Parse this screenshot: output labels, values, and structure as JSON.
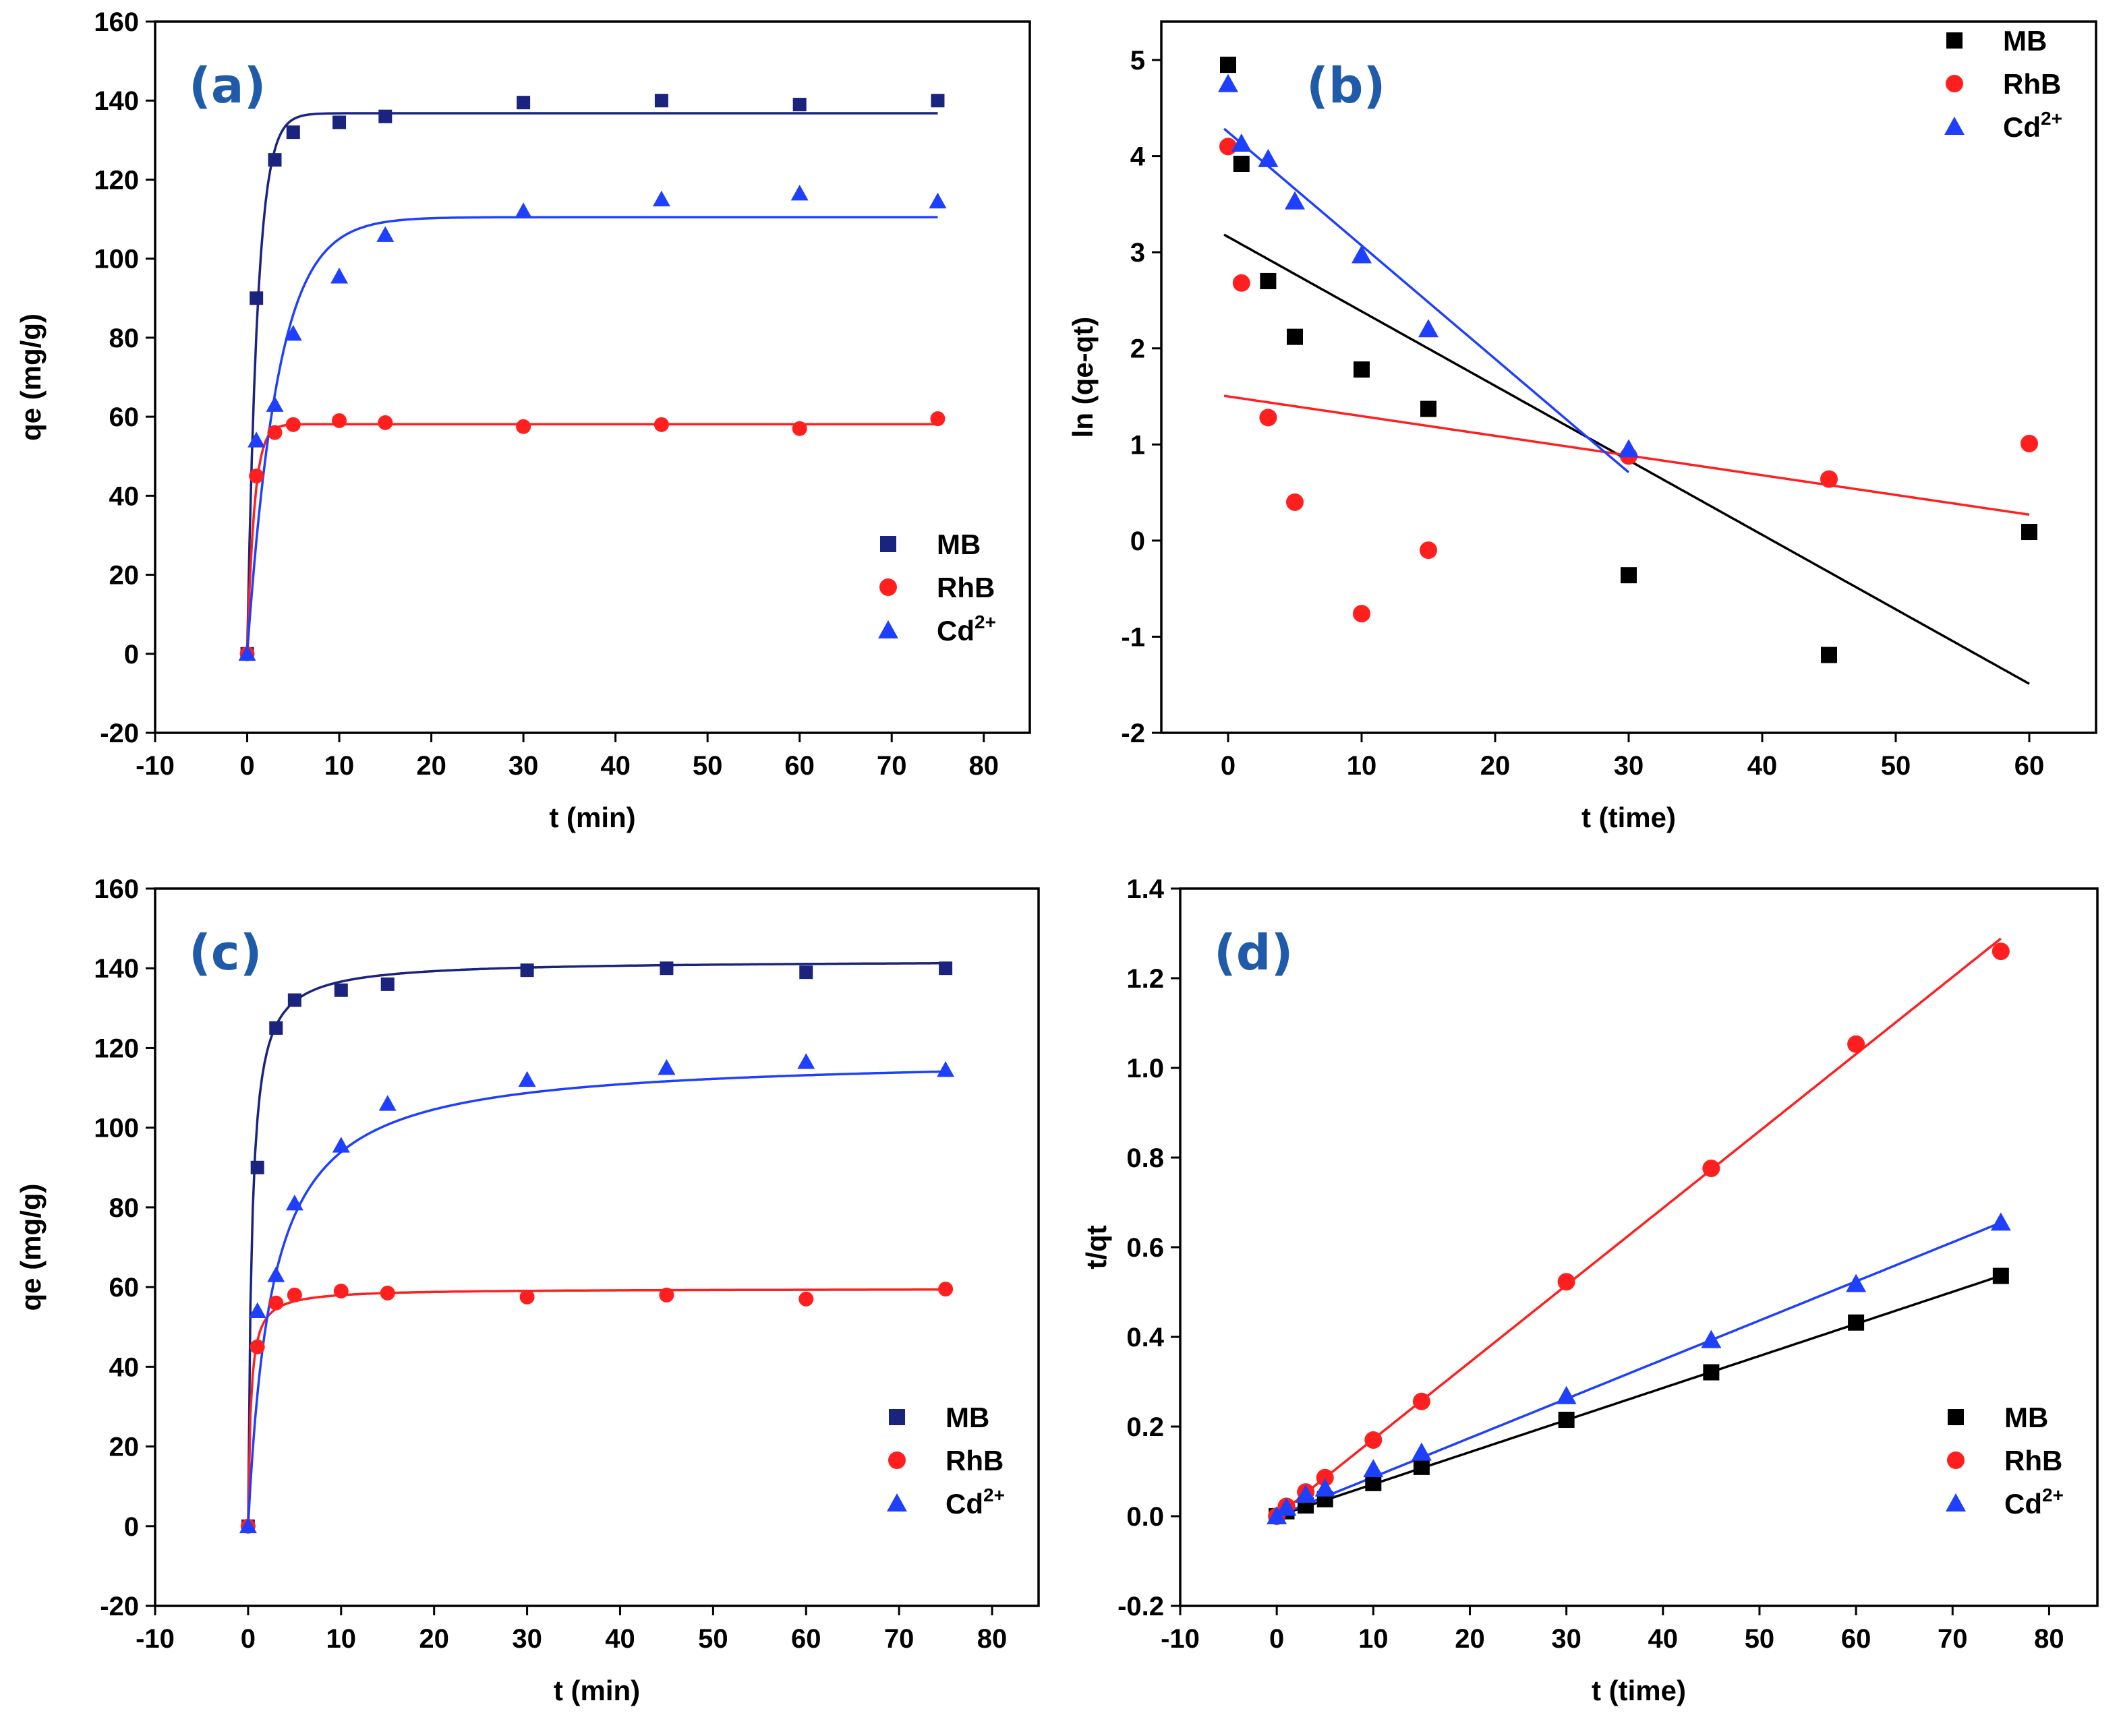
{
  "chart_data": [
    {
      "id": "a",
      "panel_label": "(a)",
      "type": "scatter",
      "xlabel": "t (min)",
      "ylabel": "qe (mg/g)",
      "xlim": [
        -10,
        85
      ],
      "ylim": [
        -20,
        160
      ],
      "xticks": [
        -10,
        0,
        10,
        20,
        30,
        40,
        50,
        60,
        70,
        80
      ],
      "yticks": [
        -20,
        0,
        20,
        40,
        60,
        80,
        100,
        120,
        140,
        160
      ],
      "legend_position": "bottom-right",
      "series": [
        {
          "name": "MB",
          "sup": "",
          "marker": "square-small",
          "color": "#1a237e",
          "x": [
            0,
            1,
            3,
            5,
            10,
            15,
            30,
            45,
            60,
            75
          ],
          "y": [
            0,
            90,
            125,
            132,
            134.5,
            136,
            139.5,
            140,
            139,
            140
          ],
          "fit": {
            "model": "pfo",
            "qe": 136.8,
            "k": 0.9,
            "xmax": 75
          }
        },
        {
          "name": "RhB",
          "sup": "",
          "marker": "circle-small",
          "color": "#ff1f1f",
          "x": [
            0,
            1,
            3,
            5,
            10,
            15,
            30,
            45,
            60,
            75
          ],
          "y": [
            0,
            45,
            56,
            58,
            59,
            58.5,
            57.5,
            58,
            57,
            59.5
          ],
          "fit": {
            "model": "pfo",
            "qe": 58.1,
            "k": 1.3,
            "xmax": 75
          }
        },
        {
          "name": "Cd",
          "sup": "2+",
          "marker": "triangle-small",
          "color": "#1f3fff",
          "x": [
            0,
            1,
            3,
            5,
            10,
            15,
            30,
            45,
            60,
            75
          ],
          "y": [
            0,
            54,
            63,
            81,
            95.5,
            106,
            112,
            115,
            116.5,
            114.5
          ],
          "fit": {
            "model": "pfo",
            "qe": 110.5,
            "k": 0.3,
            "xmax": 75
          }
        }
      ]
    },
    {
      "id": "b",
      "panel_label": "(b)",
      "type": "scatter",
      "xlabel": "t (time)",
      "ylabel": "ln (qe-qt)",
      "xlim": [
        -5,
        65
      ],
      "ylim": [
        -2,
        5.4
      ],
      "xticks": [
        0,
        10,
        20,
        30,
        40,
        50,
        60
      ],
      "yticks": [
        -2,
        -1,
        0,
        1,
        2,
        3,
        4,
        5
      ],
      "legend_position": "top-right",
      "series": [
        {
          "name": "MB",
          "sup": "",
          "marker": "square",
          "color": "#000000",
          "x": [
            0,
            1,
            3,
            5,
            10,
            15,
            30,
            45,
            60
          ],
          "y": [
            4.95,
            3.92,
            2.7,
            2.12,
            1.78,
            1.37,
            -0.36,
            -1.19,
            0.09
          ],
          "fit": {
            "model": "line",
            "slope": -0.0775,
            "intercept": 3.16,
            "xmin": -0.3,
            "xmax": 60
          }
        },
        {
          "name": "RhB",
          "sup": "",
          "marker": "circle",
          "color": "#ff1f1f",
          "x": [
            0,
            1,
            3,
            5,
            10,
            15,
            30,
            45,
            60
          ],
          "y": [
            4.1,
            2.68,
            1.28,
            0.4,
            -0.76,
            -0.1,
            0.88,
            0.64,
            1.01
          ],
          "fit": {
            "model": "line",
            "slope": -0.0205,
            "intercept": 1.5,
            "xmin": -0.3,
            "xmax": 60
          }
        },
        {
          "name": "Cd",
          "sup": "2+",
          "marker": "triangle",
          "color": "#1f3fff",
          "x": [
            0,
            1,
            3,
            5,
            10,
            15,
            30
          ],
          "y": [
            4.75,
            4.13,
            3.97,
            3.53,
            2.97,
            2.2,
            0.95
          ],
          "fit": {
            "model": "line",
            "slope": -0.118,
            "intercept": 4.25,
            "xmin": -0.3,
            "xmax": 30
          }
        }
      ]
    },
    {
      "id": "c",
      "panel_label": "(c)",
      "type": "scatter",
      "xlabel": "t (min)",
      "ylabel": "qe (mg/g)",
      "xlim": [
        -10,
        85
      ],
      "ylim": [
        -20,
        160
      ],
      "xticks": [
        -10,
        0,
        10,
        20,
        30,
        40,
        50,
        60,
        70,
        80
      ],
      "yticks": [
        -20,
        0,
        20,
        40,
        60,
        80,
        100,
        120,
        140,
        160
      ],
      "legend_position": "bottom-right",
      "series": [
        {
          "name": "MB",
          "sup": "",
          "marker": "square-small",
          "color": "#1a237e",
          "x": [
            0,
            1,
            3,
            5,
            10,
            15,
            30,
            45,
            60,
            75
          ],
          "y": [
            0,
            90,
            125,
            132,
            134.5,
            136,
            139.5,
            140,
            139,
            140
          ],
          "fit": {
            "model": "pso",
            "qe": 142,
            "k": 0.018,
            "xmax": 75
          }
        },
        {
          "name": "RhB",
          "sup": "",
          "marker": "circle-small",
          "color": "#ff1f1f",
          "x": [
            0,
            1,
            3,
            5,
            10,
            15,
            30,
            45,
            60,
            75
          ],
          "y": [
            0,
            45,
            56,
            58,
            59,
            58.5,
            57.5,
            58,
            57,
            59.5
          ],
          "fit": {
            "model": "pso",
            "qe": 59.6,
            "k": 0.06,
            "xmax": 75
          }
        },
        {
          "name": "Cd",
          "sup": "2+",
          "marker": "triangle-small",
          "color": "#1f3fff",
          "x": [
            0,
            1,
            3,
            5,
            10,
            15,
            30,
            45,
            60,
            75
          ],
          "y": [
            0,
            54,
            63,
            81,
            95.5,
            106,
            112,
            115,
            116.5,
            114.5
          ],
          "fit": {
            "model": "pso",
            "qe": 118,
            "k": 0.0033,
            "xmax": 75
          }
        }
      ]
    },
    {
      "id": "d",
      "panel_label": "(d)",
      "type": "scatter",
      "xlabel": "t (time)",
      "ylabel": "t/qt",
      "xlim": [
        -10,
        85
      ],
      "ylim": [
        -0.2,
        1.4
      ],
      "xticks": [
        -10,
        0,
        10,
        20,
        30,
        40,
        50,
        60,
        70,
        80
      ],
      "yticks": [
        -0.2,
        0.0,
        0.2,
        0.4,
        0.6,
        0.8,
        1.0,
        1.2,
        1.4
      ],
      "ytick_decimals": 1,
      "legend_position": "bottom-right",
      "series": [
        {
          "name": "MB",
          "sup": "",
          "marker": "square",
          "color": "#000000",
          "x": [
            0,
            1,
            3,
            5,
            10,
            15,
            30,
            45,
            60,
            75
          ],
          "y": [
            0,
            0.011,
            0.024,
            0.038,
            0.074,
            0.11,
            0.215,
            0.321,
            0.432,
            0.536
          ],
          "fit": {
            "model": "line",
            "slope": 0.00715,
            "intercept": 0,
            "xmin": 0,
            "xmax": 75
          }
        },
        {
          "name": "RhB",
          "sup": "",
          "marker": "circle",
          "color": "#ff1f1f",
          "x": [
            0,
            1,
            3,
            5,
            10,
            15,
            30,
            45,
            60,
            75
          ],
          "y": [
            0,
            0.022,
            0.054,
            0.086,
            0.17,
            0.256,
            0.523,
            0.776,
            1.053,
            1.26
          ],
          "fit": {
            "model": "line",
            "slope": 0.01718,
            "intercept": 0,
            "xmin": 0,
            "xmax": 75
          }
        },
        {
          "name": "Cd",
          "sup": "2+",
          "marker": "triangle",
          "color": "#1f3fff",
          "x": [
            0,
            1,
            3,
            5,
            10,
            15,
            30,
            45,
            60,
            75
          ],
          "y": [
            0,
            0.019,
            0.048,
            0.062,
            0.105,
            0.142,
            0.268,
            0.393,
            0.518,
            0.655
          ],
          "fit": {
            "model": "line",
            "slope": 0.00873,
            "intercept": 0,
            "xmin": 0,
            "xmax": 75
          }
        }
      ]
    }
  ]
}
